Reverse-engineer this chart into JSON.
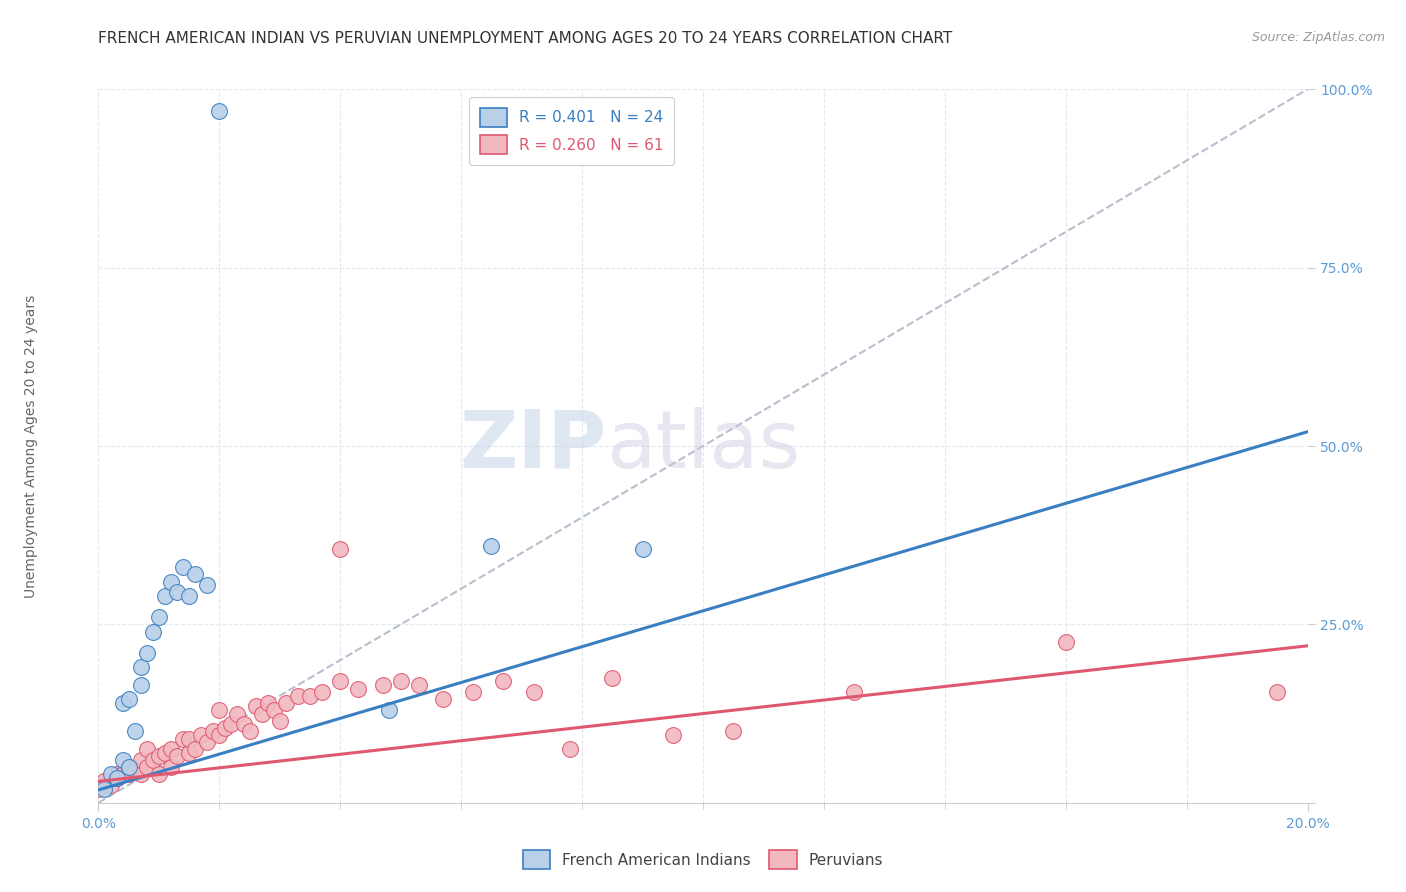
{
  "title": "FRENCH AMERICAN INDIAN VS PERUVIAN UNEMPLOYMENT AMONG AGES 20 TO 24 YEARS CORRELATION CHART",
  "source": "Source: ZipAtlas.com",
  "ylabel": "Unemployment Among Ages 20 to 24 years",
  "x_min": 0.0,
  "x_max": 0.2,
  "y_min": 0.0,
  "y_max": 1.0,
  "x_ticks": [
    0.0,
    0.2
  ],
  "x_tick_labels": [
    "0.0%",
    "20.0%"
  ],
  "y_ticks": [
    0.0,
    0.25,
    0.5,
    0.75,
    1.0
  ],
  "y_tick_labels": [
    "",
    "25.0%",
    "50.0%",
    "75.0%",
    "100.0%"
  ],
  "blue_R": 0.401,
  "blue_N": 24,
  "pink_R": 0.26,
  "pink_N": 61,
  "blue_color": "#b8d0e8",
  "pink_color": "#f2b8c0",
  "blue_line_color": "#3a7fc1",
  "pink_line_color": "#e05870",
  "watermark_zip": "ZIP",
  "watermark_atlas": "atlas",
  "blue_scatter_x": [
    0.001,
    0.002,
    0.003,
    0.004,
    0.004,
    0.005,
    0.005,
    0.006,
    0.007,
    0.007,
    0.008,
    0.009,
    0.01,
    0.011,
    0.012,
    0.013,
    0.014,
    0.015,
    0.016,
    0.018,
    0.048,
    0.065,
    0.09,
    0.02
  ],
  "blue_scatter_y": [
    0.02,
    0.04,
    0.035,
    0.06,
    0.14,
    0.05,
    0.145,
    0.1,
    0.165,
    0.19,
    0.21,
    0.24,
    0.26,
    0.29,
    0.31,
    0.295,
    0.33,
    0.29,
    0.32,
    0.305,
    0.13,
    0.36,
    0.355,
    0.97
  ],
  "pink_scatter_x": [
    0.0,
    0.001,
    0.001,
    0.002,
    0.003,
    0.003,
    0.004,
    0.005,
    0.005,
    0.006,
    0.007,
    0.007,
    0.008,
    0.008,
    0.009,
    0.01,
    0.01,
    0.011,
    0.012,
    0.012,
    0.013,
    0.014,
    0.015,
    0.015,
    0.016,
    0.017,
    0.018,
    0.019,
    0.02,
    0.02,
    0.021,
    0.022,
    0.023,
    0.024,
    0.025,
    0.026,
    0.027,
    0.028,
    0.029,
    0.03,
    0.031,
    0.033,
    0.035,
    0.037,
    0.04,
    0.04,
    0.043,
    0.047,
    0.05,
    0.053,
    0.057,
    0.062,
    0.067,
    0.072,
    0.078,
    0.085,
    0.095,
    0.105,
    0.125,
    0.16,
    0.195
  ],
  "pink_scatter_y": [
    0.02,
    0.025,
    0.03,
    0.025,
    0.035,
    0.04,
    0.04,
    0.04,
    0.05,
    0.045,
    0.04,
    0.06,
    0.05,
    0.075,
    0.06,
    0.04,
    0.065,
    0.07,
    0.05,
    0.075,
    0.065,
    0.09,
    0.07,
    0.09,
    0.075,
    0.095,
    0.085,
    0.1,
    0.095,
    0.13,
    0.105,
    0.11,
    0.125,
    0.11,
    0.1,
    0.135,
    0.125,
    0.14,
    0.13,
    0.115,
    0.14,
    0.15,
    0.15,
    0.155,
    0.17,
    0.355,
    0.16,
    0.165,
    0.17,
    0.165,
    0.145,
    0.155,
    0.17,
    0.155,
    0.075,
    0.175,
    0.095,
    0.1,
    0.155,
    0.225,
    0.155
  ],
  "blue_line_x": [
    0.0,
    0.2
  ],
  "blue_line_y": [
    0.018,
    0.52
  ],
  "pink_line_x": [
    0.0,
    0.2
  ],
  "pink_line_y": [
    0.03,
    0.22
  ],
  "ref_line_x": [
    0.0,
    0.2
  ],
  "ref_line_y": [
    0.0,
    1.0
  ],
  "background_color": "#ffffff",
  "grid_color": "#e0e8f0",
  "tick_color": "#5b9bd5",
  "title_fontsize": 11,
  "axis_label_fontsize": 10,
  "tick_fontsize": 10,
  "legend_fontsize": 11
}
